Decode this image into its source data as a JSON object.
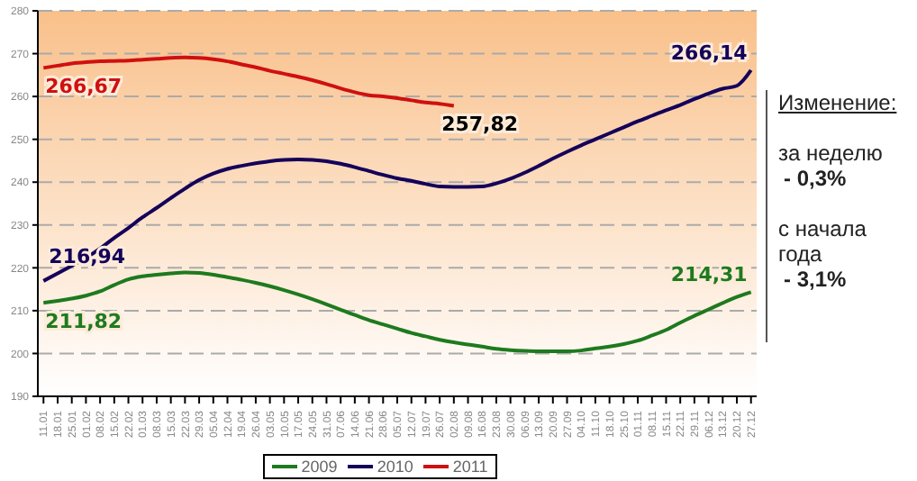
{
  "chart_data": {
    "type": "line",
    "categories": [
      "11.01",
      "18.01",
      "25.01",
      "01.02",
      "08.02",
      "15.02",
      "22.02",
      "01.03",
      "08.03",
      "15.03",
      "22.03",
      "29.03",
      "05.04",
      "12.04",
      "19.04",
      "26.04",
      "03.05",
      "10.05",
      "17.05",
      "24.05",
      "31.05",
      "07.06",
      "14.06",
      "21.06",
      "28.06",
      "05.07",
      "12.07",
      "19.07",
      "26.07",
      "02.08",
      "09.08",
      "16.08",
      "23.08",
      "30.08",
      "06.09",
      "13.09",
      "20.09",
      "27.09",
      "04.10",
      "11.10",
      "18.10",
      "25.10",
      "01.11",
      "08.11",
      "15.11",
      "22.11",
      "29.11",
      "06.12",
      "13.12",
      "20.12",
      "27.12"
    ],
    "series": [
      {
        "name": "2009",
        "color": "#1e7a1e",
        "values": [
          211.82,
          212.3,
          212.8,
          213.5,
          214.5,
          216,
          217.3,
          218,
          218.4,
          218.7,
          218.9,
          218.8,
          218.4,
          217.8,
          217.2,
          216.5,
          215.7,
          214.8,
          213.8,
          212.7,
          211.5,
          210.2,
          209,
          207.8,
          206.8,
          205.8,
          204.8,
          204,
          203.2,
          202.6,
          202.1,
          201.6,
          201.1,
          200.8,
          200.6,
          200.5,
          200.5,
          200.5,
          200.7,
          201.2,
          201.6,
          202.2,
          203,
          204.2,
          205.5,
          207.2,
          208.8,
          210.3,
          211.8,
          213.2,
          214.31
        ]
      },
      {
        "name": "2010",
        "color": "#14005a",
        "values": [
          216.94,
          218.7,
          220.5,
          222.3,
          224.5,
          227,
          229.3,
          231.8,
          234,
          236.3,
          238.5,
          240.5,
          242,
          243.1,
          243.8,
          244.4,
          244.9,
          245.2,
          245.3,
          245.2,
          244.9,
          244.3,
          243.5,
          242.6,
          241.7,
          240.9,
          240.3,
          239.6,
          239,
          238.9,
          238.9,
          239,
          239.7,
          240.8,
          242.2,
          243.8,
          245.5,
          247.1,
          248.6,
          250,
          251.4,
          252.8,
          254.2,
          255.5,
          256.8,
          258,
          259.4,
          260.7,
          261.8,
          262.5,
          266.14
        ]
      },
      {
        "name": "2011",
        "color": "#d01010",
        "values": [
          266.67,
          267.2,
          267.7,
          268,
          268.2,
          268.3,
          268.4,
          268.6,
          268.8,
          269,
          269.1,
          269,
          268.7,
          268.2,
          267.5,
          266.8,
          266,
          265.3,
          264.6,
          263.8,
          262.9,
          261.9,
          261,
          260.3,
          260,
          259.6,
          259.1,
          258.6,
          258.3,
          257.82,
          null,
          null,
          null,
          null,
          null,
          null,
          null,
          null,
          null,
          null,
          null,
          null,
          null,
          null,
          null,
          null,
          null,
          null,
          null,
          null,
          null
        ]
      }
    ],
    "ylim": [
      190,
      280
    ],
    "yticks": [
      190,
      200,
      210,
      220,
      230,
      240,
      250,
      260,
      270,
      280
    ],
    "grid": "y",
    "legend": "bottom",
    "marker": "none",
    "line_style": "solid",
    "annotations": [
      {
        "text": "266,67",
        "x": "11.01",
        "y": 266.67
      },
      {
        "text": "216,94",
        "x": "11.01",
        "y": 216.94
      },
      {
        "text": "211,82",
        "x": "11.01",
        "y": 211.82
      },
      {
        "text": "257,82",
        "x": "26.07",
        "y": 257.82
      },
      {
        "text": "266,14",
        "x": "27.12",
        "y": 266.14
      },
      {
        "text": "214,31",
        "x": "27.12",
        "y": 214.31
      },
      "Изменение:",
      "за неделю",
      "- 0,3%",
      "с начала года",
      "- 3,1%"
    ]
  }
}
